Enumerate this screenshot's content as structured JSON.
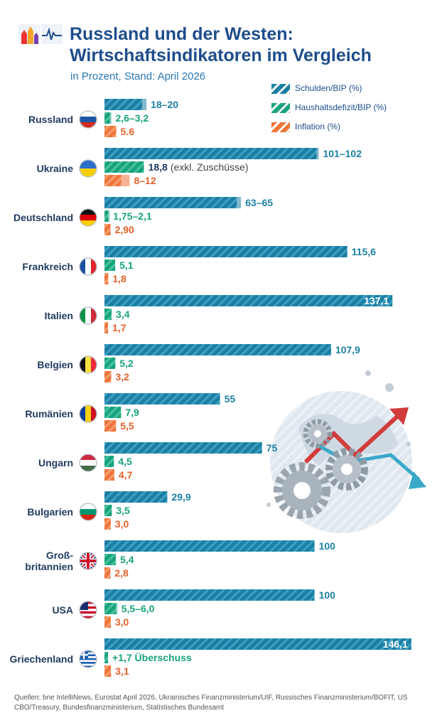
{
  "header": {
    "title_line1": "Russland und der Westen:",
    "title_line2": "Wirtschaftsindikatoren im Vergleich",
    "subtitle": "in Prozent, Stand: April 2026"
  },
  "legend": [
    {
      "label": "Schulden/BIP (%)",
      "color": "#1b7fa3"
    },
    {
      "label": "Haushaltsdefizit/BIP (%)",
      "color": "#17a37e"
    },
    {
      "label": "Inflation (%)",
      "color": "#f0743a"
    }
  ],
  "colors": {
    "title": "#1e4d8c",
    "subtitle": "#2a78b5",
    "debt": "#1b7fa3",
    "deficit": "#17a37e",
    "inflation": "#f0743a",
    "debt_text": "#1b7fa3",
    "deficit_text": "#17a37e",
    "inflation_text": "#e3602a"
  },
  "chart_data": {
    "type": "bar",
    "orientation": "horizontal",
    "title": "Russland und der Westen: Wirtschaftsindikatoren im Vergleich",
    "subtitle": "in Prozent, Stand: April 2026",
    "categories": [
      "Russland",
      "Ukraine",
      "Deutschland",
      "Frankreich",
      "Italien",
      "Belgien",
      "Rumänien",
      "Ungarn",
      "Bulgarien",
      "Groß-britannien",
      "USA",
      "Griechenland"
    ],
    "category_lines": [
      [
        "Russland"
      ],
      [
        "Ukraine"
      ],
      [
        "Deutschland"
      ],
      [
        "Frankreich"
      ],
      [
        "Italien"
      ],
      [
        "Belgien"
      ],
      [
        "Rumänien"
      ],
      [
        "Ungarn"
      ],
      [
        "Bulgarien"
      ],
      [
        "Groß-",
        "britannien"
      ],
      [
        "USA"
      ],
      [
        "Griechenland"
      ]
    ],
    "flags": [
      "russia-flag-icon",
      "ukraine-flag-icon",
      "germany-flag-icon",
      "france-flag-icon",
      "italy-flag-icon",
      "belgium-flag-icon",
      "romania-flag-icon",
      "hungary-flag-icon",
      "bulgaria-flag-icon",
      "uk-flag-icon",
      "usa-flag-icon",
      "greece-flag-icon"
    ],
    "series": [
      {
        "name": "Schulden/BIP (%)",
        "values": [
          [
            18,
            20
          ],
          [
            101,
            102
          ],
          [
            63,
            65
          ],
          115.6,
          137.1,
          107.9,
          55,
          75,
          29.9,
          100,
          100,
          146.1
        ],
        "labels": [
          "18–20",
          "101–102",
          "63–65",
          "115,6",
          "137,1",
          "107,9",
          "55",
          "75",
          "29,9",
          "100",
          "100",
          "146,1"
        ]
      },
      {
        "name": "Haushaltsdefizit/BIP (%)",
        "values": [
          [
            2.6,
            3.2
          ],
          18.8,
          [
            1.75,
            2.1
          ],
          5.1,
          3.4,
          5.2,
          7.9,
          4.5,
          3.5,
          5.4,
          [
            5.5,
            6.0
          ],
          1.7
        ],
        "labels": [
          "2,6–3,2",
          "18,8 (exkl. Zuschüsse)",
          "1,75–2,1",
          "5,1",
          "3,4",
          "5,2",
          "7,9",
          "4,5",
          "3,5",
          "5,4",
          "5,5–6,0",
          "+1,7 Überschuss"
        ]
      },
      {
        "name": "Inflation (%)",
        "values": [
          5.6,
          [
            8,
            12
          ],
          2.9,
          1.8,
          1.7,
          3.2,
          5.5,
          4.7,
          3.0,
          2.8,
          3.0,
          3.1
        ],
        "labels": [
          "5.6",
          "8–12",
          "2,90",
          "1,8",
          "1,7",
          "3,2",
          "5,5",
          "4,7",
          "3,0",
          "2,8",
          "3,0",
          "3,1"
        ]
      }
    ],
    "x_range": [
      0,
      146.1
    ],
    "grid": false,
    "legend_position": "top-right"
  },
  "sources": "Quellen: bne IntelliNews, Eurostat April 2026, Ukrainisches Finanzministerium/UIF, Russisches Finanzministerium/BOFIT, US CBO/Treasury, Bundesfinanzministerium, Statistisches Bundesamt"
}
